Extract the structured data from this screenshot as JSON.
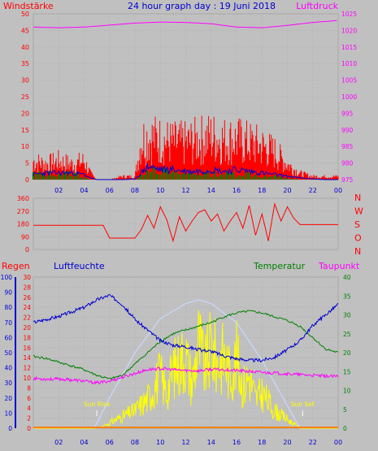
{
  "title": "24 hour graph day : 19 Juni 2018",
  "colors": {
    "bg": "#c0c0c0",
    "grid": "#a8a8a8",
    "red": "#ff0000",
    "blue": "#0000d0",
    "green": "#008000",
    "magenta": "#ff00ff",
    "yellow": "#ffff00",
    "lightblue": "#c8d8ff",
    "darkred": "#a00000",
    "orange": "#ff8000"
  },
  "chart_data": [
    {
      "type": "line",
      "title": "24 hour graph day : 19 Juni 2018",
      "left_label": "Windstärke",
      "right_label": "Luftdruck",
      "x_ticks": [
        "02",
        "04",
        "06",
        "08",
        "10",
        "12",
        "14",
        "16",
        "18",
        "20",
        "22",
        "00"
      ],
      "x_range": [
        0,
        24
      ],
      "left_ylim": [
        0,
        50
      ],
      "left_ticks": [
        "0",
        "5",
        "10",
        "15",
        "20",
        "25",
        "30",
        "35",
        "40",
        "45",
        "50"
      ],
      "right_ylim": [
        975,
        1025
      ],
      "right_ticks": [
        "975",
        "980",
        "985",
        "990",
        "995",
        "1000",
        "1005",
        "1010",
        "1015",
        "1020",
        "1025"
      ],
      "series": [
        {
          "color": "#ff00ff",
          "axis": "right",
          "x": [
            0,
            2,
            4,
            6,
            8,
            10,
            12,
            14,
            16,
            18,
            20,
            22,
            24
          ],
          "y": [
            1021,
            1020.8,
            1021,
            1021.6,
            1022.2,
            1022.5,
            1022.4,
            1022,
            1021,
            1020.8,
            1021.5,
            1022.4,
            1023
          ]
        },
        {
          "color": "#ff0000",
          "kind": "gust",
          "x": [
            0,
            1,
            2,
            3,
            4,
            4.5,
            5,
            6,
            7,
            8,
            8.5,
            9,
            10,
            11,
            12,
            13,
            14,
            15,
            16,
            17,
            18,
            19,
            20,
            21,
            22,
            23,
            24
          ],
          "y": [
            6,
            5,
            6,
            5,
            6,
            2,
            0,
            0,
            1,
            1,
            13,
            14,
            13,
            12,
            12,
            13,
            14,
            13,
            13,
            12,
            11,
            9,
            5,
            2,
            1,
            1,
            1
          ]
        },
        {
          "color": "#0000d0",
          "x": [
            0,
            1,
            2,
            3,
            4,
            4.5,
            5,
            6,
            7,
            8,
            8.5,
            9,
            10,
            11,
            12,
            13,
            14,
            15,
            16,
            17,
            18,
            19,
            20,
            21,
            22,
            23,
            24
          ],
          "y": [
            1.5,
            2,
            2,
            2,
            1.5,
            0.5,
            0,
            0,
            0,
            0.2,
            2,
            4,
            3,
            3,
            2.5,
            2.5,
            3,
            2.5,
            3,
            2.5,
            2,
            1.5,
            1,
            0.5,
            0.2,
            0,
            0
          ]
        },
        {
          "color": "#008000",
          "kind": "bars",
          "x": [
            0,
            1,
            2,
            3,
            4,
            4.5,
            5,
            6,
            7,
            8,
            8.5,
            9,
            10,
            11,
            12,
            13,
            14,
            15,
            16,
            17,
            18,
            19,
            20,
            21,
            22,
            23,
            24
          ],
          "y": [
            2,
            2,
            2,
            2,
            1,
            0,
            0,
            0,
            0,
            0,
            1,
            5,
            3,
            2,
            2,
            2,
            2,
            2,
            2,
            2,
            1,
            1,
            0.5,
            0,
            0,
            0,
            0
          ]
        }
      ]
    },
    {
      "type": "line",
      "right_label": "N W S O N",
      "right_letters": [
        "N",
        "W",
        "S",
        "O",
        "N"
      ],
      "x_range": [
        0,
        24
      ],
      "ylim": [
        0,
        360
      ],
      "left_ticks": [
        "0",
        "90",
        "180",
        "270",
        "360"
      ],
      "series": [
        {
          "color": "#ff0000",
          "x": [
            0,
            1,
            2,
            3,
            4,
            5,
            5.5,
            6,
            7,
            7.5,
            8,
            8.5,
            9,
            9.5,
            10,
            10.5,
            11,
            11.5,
            12,
            12.5,
            13,
            13.5,
            14,
            14.5,
            15,
            15.5,
            16,
            16.5,
            17,
            17.5,
            18,
            18.5,
            19,
            19.5,
            20,
            20.5,
            21,
            22,
            23,
            24
          ],
          "y": [
            170,
            170,
            170,
            170,
            170,
            170,
            170,
            80,
            80,
            80,
            80,
            140,
            240,
            150,
            300,
            210,
            60,
            230,
            130,
            200,
            260,
            280,
            200,
            250,
            130,
            200,
            260,
            150,
            310,
            100,
            250,
            60,
            320,
            200,
            300,
            220,
            175,
            175,
            175,
            175
          ]
        }
      ]
    },
    {
      "type": "line",
      "left_label_rain": "Regen",
      "left_label_humidity": "Luftfeuchte",
      "right_label_temp": "Temperatur",
      "right_label_dew": "Taupunkt",
      "x_range": [
        0,
        24
      ],
      "humidity_ylim": [
        0,
        100
      ],
      "humidity_ticks": [
        "0",
        "10",
        "20",
        "30",
        "40",
        "50",
        "60",
        "70",
        "80",
        "90",
        "100"
      ],
      "rain_ylim": [
        0,
        30
      ],
      "rain_ticks": [
        "0",
        "2",
        "4",
        "6",
        "8",
        "10",
        "12",
        "14",
        "16",
        "18",
        "20",
        "22",
        "24",
        "26",
        "28",
        "30"
      ],
      "temp_ylim": [
        0,
        40
      ],
      "temp_ticks": [
        "0",
        "5",
        "10",
        "15",
        "20",
        "25",
        "30",
        "35",
        "40"
      ],
      "annotations": [
        {
          "text": "Sun Rise",
          "x": 5.0
        },
        {
          "text": "Sun Set",
          "x": 21.2
        }
      ],
      "series": [
        {
          "color": "#0000d0",
          "axis": "humidity",
          "x": [
            0,
            1,
            2,
            3,
            4,
            5,
            6,
            7,
            8,
            9,
            10,
            11,
            12,
            13,
            14,
            15,
            16,
            17,
            18,
            19,
            20,
            21,
            22,
            23,
            24
          ],
          "y": [
            70,
            72,
            74,
            77,
            80,
            85,
            88,
            82,
            72,
            65,
            58,
            55,
            54,
            52,
            51,
            48,
            46,
            45,
            45,
            47,
            52,
            58,
            68,
            75,
            82
          ]
        },
        {
          "color": "#008000",
          "axis": "temp",
          "x": [
            0,
            1,
            2,
            3,
            4,
            5,
            6,
            7,
            8,
            9,
            10,
            11,
            12,
            13,
            14,
            15,
            16,
            17,
            18,
            19,
            20,
            21,
            22,
            23,
            24
          ],
          "y": [
            19,
            18.5,
            17.5,
            16.5,
            15.5,
            14,
            13,
            14,
            17,
            20,
            23,
            25,
            26,
            27,
            28,
            29.5,
            30.5,
            31,
            30.5,
            29.5,
            28.5,
            27,
            24,
            21,
            20
          ]
        },
        {
          "color": "#ff00ff",
          "axis": "temp",
          "x": [
            0,
            1,
            2,
            3,
            4,
            5,
            6,
            7,
            8,
            9,
            10,
            11,
            12,
            13,
            14,
            15,
            16,
            17,
            18,
            19,
            20,
            21,
            22,
            23,
            24
          ],
          "y": [
            13.2,
            13,
            13,
            12.8,
            12.5,
            12,
            12.5,
            13.5,
            14.5,
            15.5,
            15.8,
            15.5,
            15.3,
            15.2,
            15.6,
            15.5,
            15.3,
            15,
            14.8,
            14.6,
            14.4,
            14.2,
            14,
            13.8,
            13.7
          ]
        },
        {
          "color": "#ffff00",
          "axis": "temp",
          "kind": "solar",
          "x": [
            0,
            4.8,
            5.5,
            6.5,
            8,
            9,
            10,
            10.5,
            11,
            12,
            12.5,
            13,
            13.5,
            14,
            14.5,
            15,
            15.5,
            16,
            16.5,
            17,
            17.5,
            18,
            19,
            20,
            21,
            24
          ],
          "y": [
            0,
            0,
            0.5,
            3,
            6,
            10,
            18,
            12,
            20,
            25,
            15,
            30,
            20,
            28,
            22,
            25,
            18,
            24,
            14,
            18,
            10,
            12,
            6,
            3,
            0,
            0
          ]
        },
        {
          "color": "#c8d8ff",
          "axis": "temp",
          "x": [
            0,
            4.8,
            6,
            8,
            10,
            12,
            13,
            14,
            16,
            18,
            20,
            21,
            24
          ],
          "y": [
            0,
            0,
            8,
            20,
            29,
            33,
            34,
            33,
            28,
            18,
            6,
            0,
            0
          ]
        },
        {
          "color": "#ff8000",
          "axis": "rain",
          "x": [
            0,
            24
          ],
          "y": [
            0,
            0
          ]
        }
      ]
    }
  ]
}
